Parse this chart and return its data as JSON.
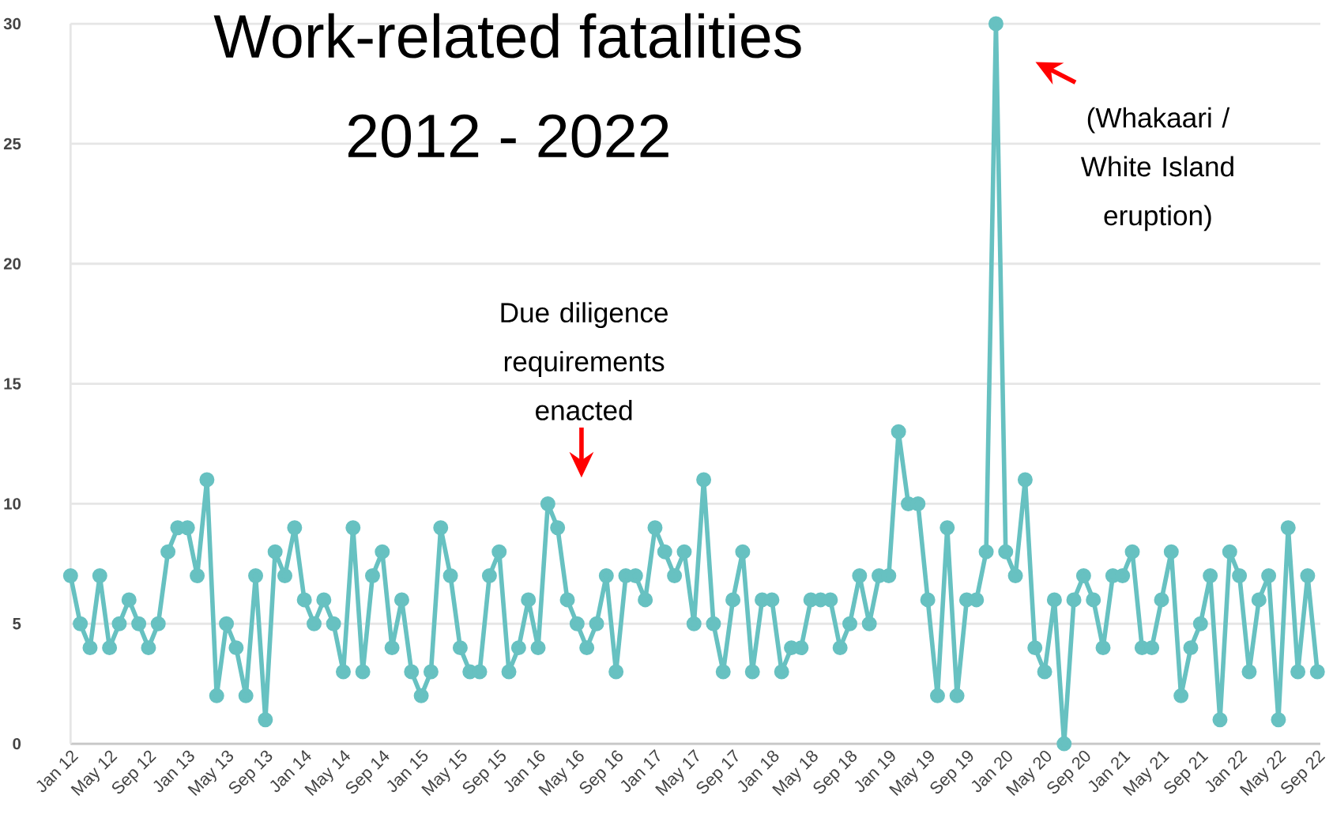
{
  "chart_data": {
    "type": "line",
    "title": "Work-related fatalities",
    "subtitle": "2012 - 2022",
    "categories": [
      "Jan 12",
      null,
      null,
      null,
      "May 12",
      null,
      null,
      null,
      "Sep 12",
      null,
      null,
      null,
      "Jan 13",
      null,
      null,
      null,
      "May 13",
      null,
      null,
      null,
      "Sep 13",
      null,
      null,
      null,
      "Jan 14",
      null,
      null,
      null,
      "May 14",
      null,
      null,
      null,
      "Sep 14",
      null,
      null,
      null,
      "Jan 15",
      null,
      null,
      null,
      "May 15",
      null,
      null,
      null,
      "Sep 15",
      null,
      null,
      null,
      "Jan 16",
      null,
      null,
      null,
      "May 16",
      null,
      null,
      null,
      "Sep 16",
      null,
      null,
      null,
      "Jan 17",
      null,
      null,
      null,
      "May 17",
      null,
      null,
      null,
      "Sep 17",
      null,
      null,
      null,
      "Jan 18",
      null,
      null,
      null,
      "May 18",
      null,
      null,
      null,
      "Sep 18",
      null,
      null,
      null,
      "Jan 19",
      null,
      null,
      null,
      "May 19",
      null,
      null,
      null,
      "Sep 19",
      null,
      null,
      null,
      "Jan 20",
      null,
      null,
      null,
      "May 20",
      null,
      null,
      null,
      "Sep 20",
      null,
      null,
      null,
      "Jan 21",
      null,
      null,
      null,
      "May 21",
      null,
      null,
      null,
      "Sep 21",
      null,
      null,
      null,
      "Jan 22",
      null,
      null,
      null,
      "May 22",
      null,
      null,
      null,
      "Sep 22"
    ],
    "series": [
      {
        "color": "#67c1c1",
        "values": [
          7,
          5,
          4,
          7,
          4,
          5,
          6,
          5,
          4,
          5,
          8,
          9,
          9,
          7,
          11,
          2,
          5,
          4,
          2,
          7,
          1,
          8,
          7,
          9,
          6,
          5,
          6,
          5,
          3,
          9,
          3,
          7,
          8,
          4,
          6,
          3,
          2,
          3,
          9,
          7,
          4,
          3,
          3,
          7,
          8,
          3,
          4,
          6,
          4,
          10,
          9,
          6,
          5,
          4,
          5,
          7,
          3,
          7,
          7,
          6,
          9,
          8,
          7,
          8,
          5,
          11,
          5,
          3,
          6,
          8,
          3,
          6,
          6,
          3,
          4,
          4,
          6,
          6,
          6,
          4,
          5,
          7,
          5,
          7,
          7,
          13,
          10,
          10,
          6,
          2,
          9,
          2,
          6,
          6,
          8,
          30,
          8,
          7,
          11,
          4,
          3,
          6,
          0,
          6,
          7,
          6,
          4,
          7,
          7,
          8,
          4,
          4,
          6,
          8,
          2,
          4,
          5,
          7,
          1,
          8,
          7,
          3,
          6,
          7,
          1,
          9,
          3,
          7,
          3
        ]
      }
    ],
    "ylim": [
      0,
      30
    ],
    "yticks": [
      0,
      5,
      10,
      15,
      20,
      25,
      30
    ],
    "grid": "y",
    "marker": "circle",
    "line_style": "solid",
    "annotations": [
      "Due diligence requirements enacted",
      "(Whakaari / White Island eruption)"
    ]
  }
}
